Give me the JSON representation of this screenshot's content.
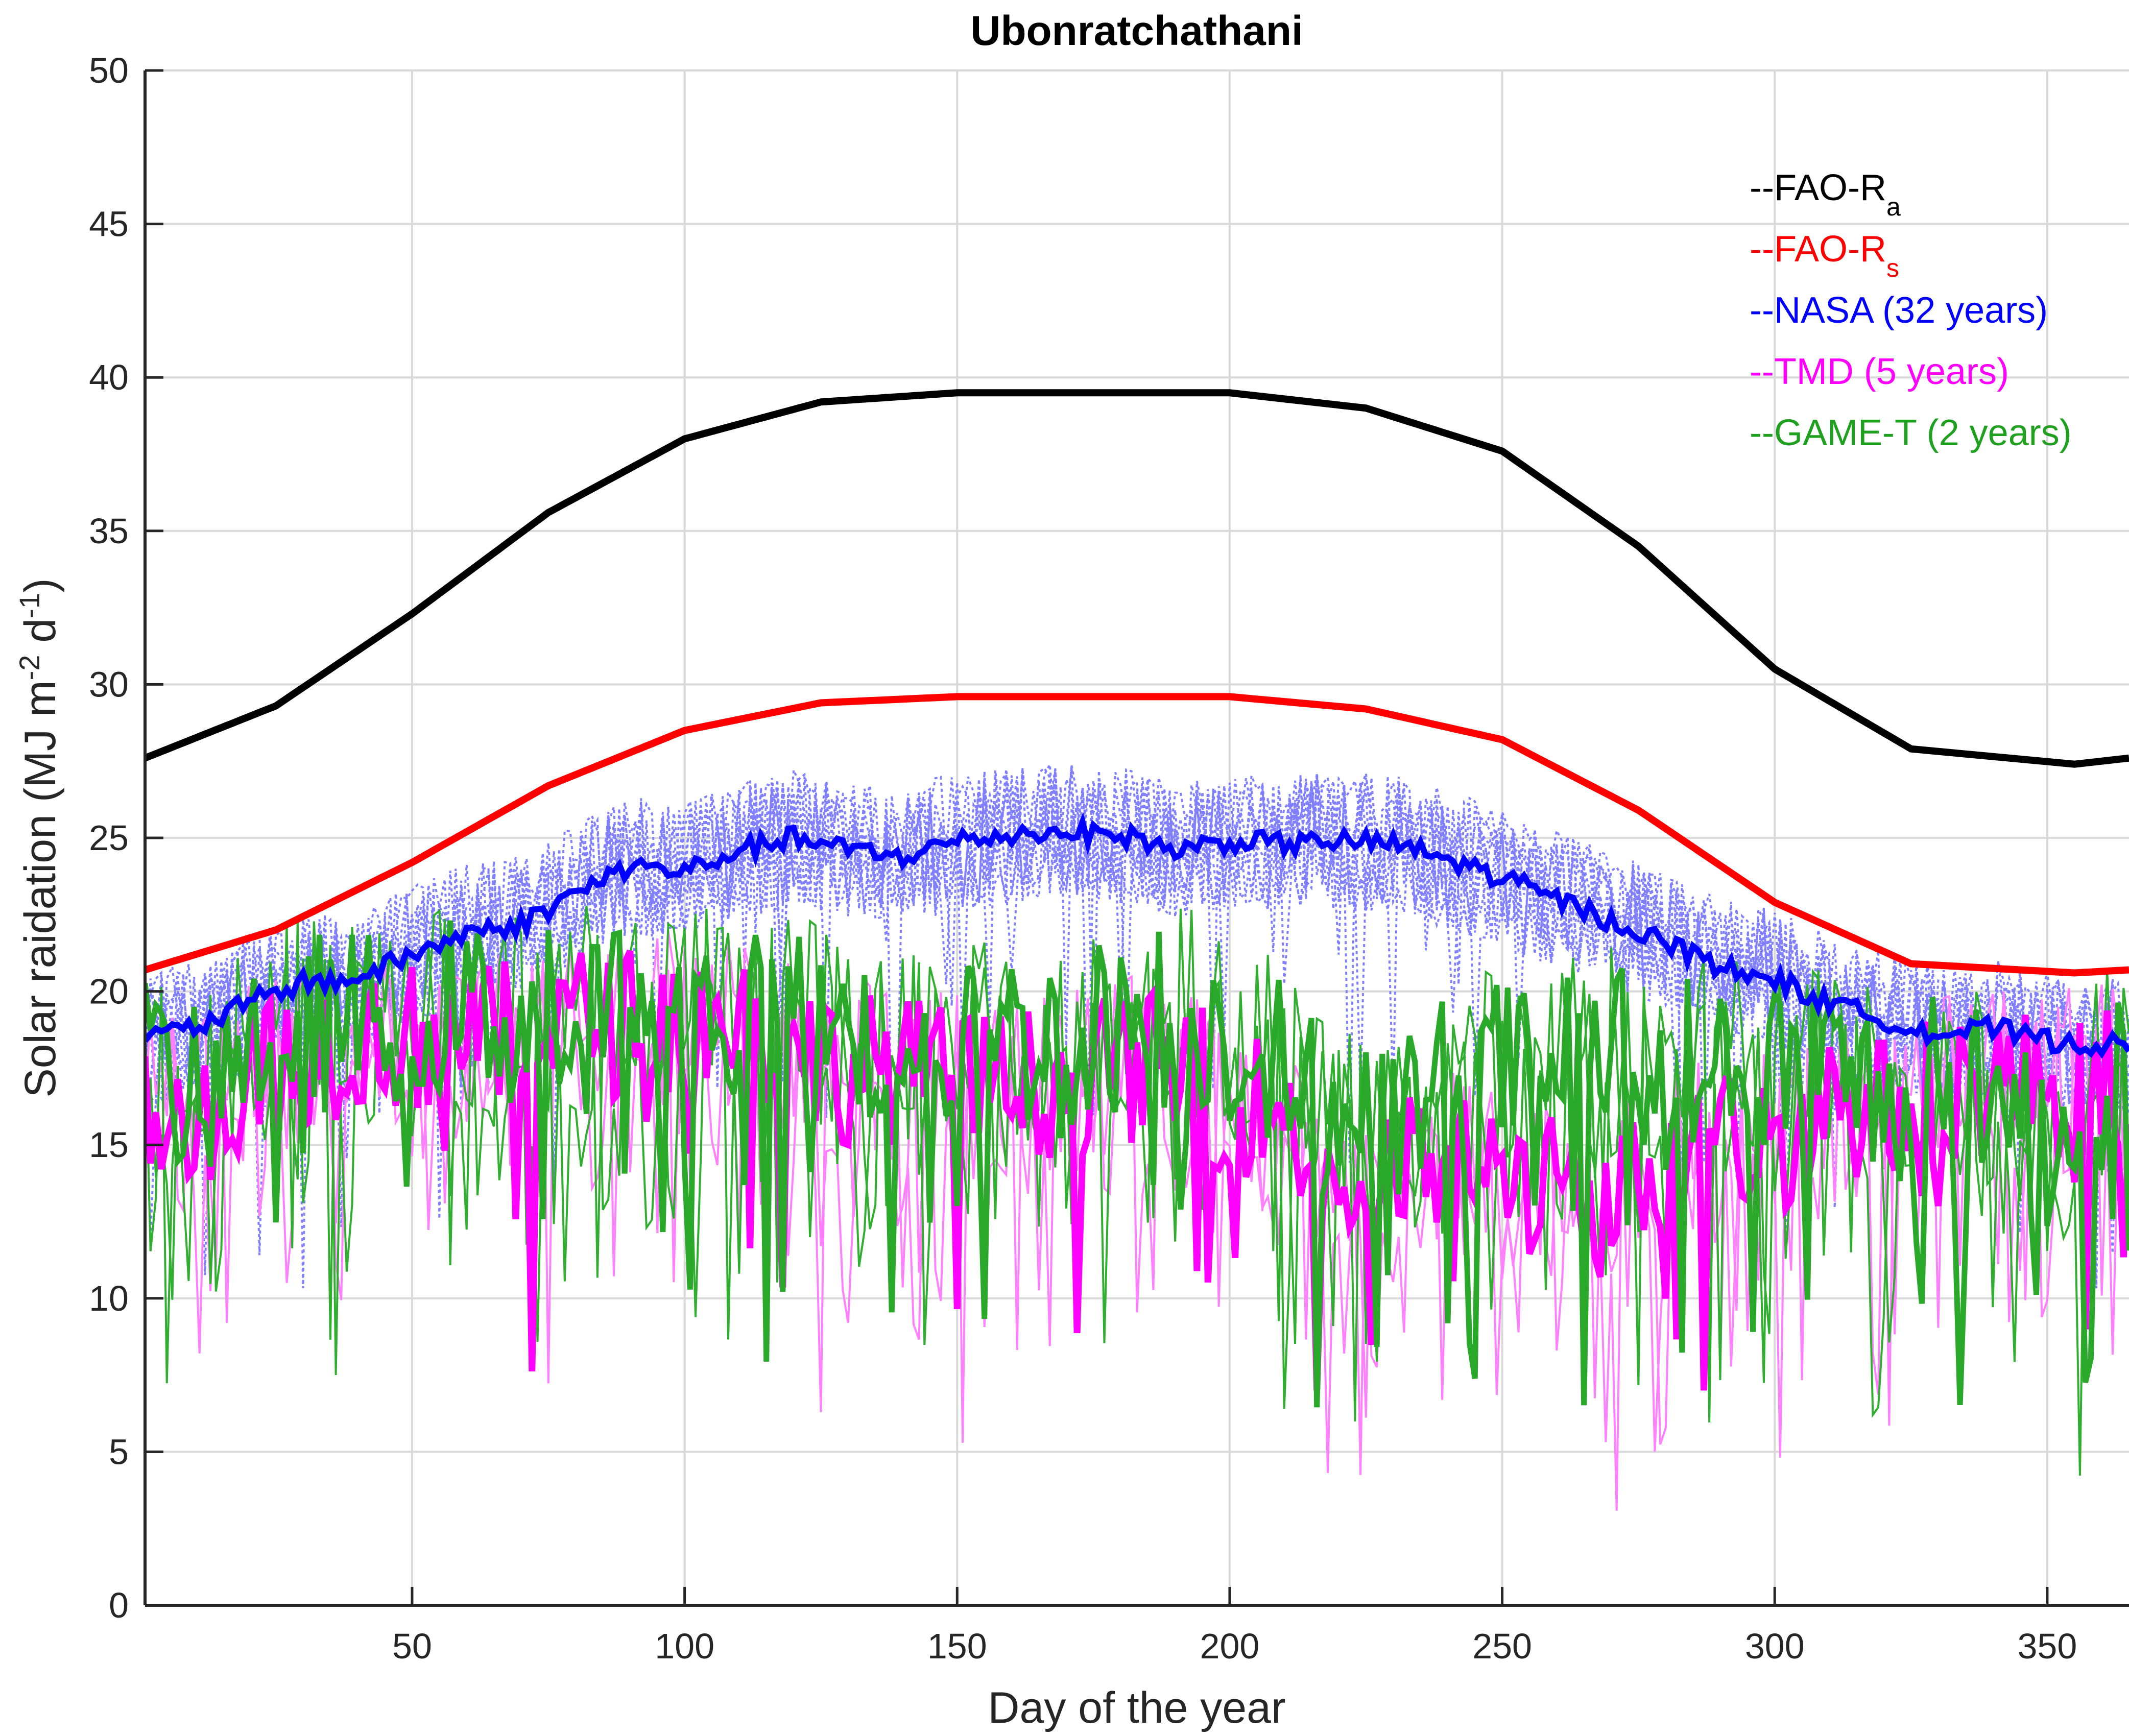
{
  "chart_data": {
    "type": "line",
    "title": "Ubonratchathani",
    "xlabel": "Day of the year",
    "ylabel_parts": [
      "Solar raidation (MJ m",
      "-2",
      " d",
      "-1",
      ")"
    ],
    "xlim": [
      1,
      365
    ],
    "ylim": [
      0,
      50
    ],
    "xticks": [
      50,
      100,
      150,
      200,
      250,
      300,
      350
    ],
    "yticks": [
      0,
      5,
      10,
      15,
      20,
      25,
      30,
      35,
      40,
      45,
      50
    ],
    "grid": true,
    "legend_position": "top-right",
    "series": [
      {
        "name": "--FAO-R",
        "subscript": "a",
        "color": "#000000",
        "style": "thick-solid",
        "x": [
          1,
          25,
          50,
          75,
          100,
          125,
          150,
          172,
          200,
          225,
          250,
          275,
          300,
          325,
          355,
          365
        ],
        "values": [
          27.6,
          29.3,
          32.3,
          35.6,
          38.0,
          39.2,
          39.5,
          39.5,
          39.5,
          39.0,
          37.6,
          34.5,
          30.5,
          27.9,
          27.4,
          27.6
        ]
      },
      {
        "name": "--FAO-R",
        "subscript": "s",
        "color": "#ff0000",
        "style": "thick-solid",
        "x": [
          1,
          25,
          50,
          75,
          100,
          125,
          150,
          172,
          200,
          225,
          250,
          275,
          300,
          325,
          355,
          365
        ],
        "values": [
          20.7,
          22.0,
          24.2,
          26.7,
          28.5,
          29.4,
          29.6,
          29.6,
          29.6,
          29.2,
          28.2,
          25.9,
          22.9,
          20.9,
          20.6,
          20.7
        ]
      },
      {
        "name": "--NASA (32 years)",
        "subscript": "",
        "color": "#0000ff",
        "style": "thick-solid-with-dotted-spread",
        "x": [
          1,
          10,
          20,
          30,
          40,
          50,
          60,
          70,
          80,
          90,
          100,
          110,
          120,
          130,
          140,
          150,
          160,
          170,
          180,
          190,
          200,
          210,
          220,
          230,
          240,
          250,
          260,
          270,
          280,
          290,
          300,
          310,
          320,
          330,
          340,
          350,
          365
        ],
        "values": [
          18.5,
          18.8,
          19.6,
          20.3,
          20.4,
          21.2,
          21.9,
          22.2,
          23.2,
          24.1,
          23.9,
          24.6,
          25.0,
          24.6,
          24.4,
          24.9,
          25.1,
          25.2,
          25.1,
          24.6,
          24.9,
          24.8,
          24.9,
          24.8,
          24.3,
          23.7,
          23.0,
          22.3,
          21.6,
          20.8,
          20.4,
          19.6,
          19.1,
          18.6,
          18.8,
          18.4,
          18.2
        ]
      },
      {
        "name": "--TMD (5 years)",
        "subscript": "",
        "color": "#ff00ff",
        "style": "thick-solid-with-daily-lines",
        "x": [
          1,
          10,
          20,
          30,
          40,
          50,
          60,
          70,
          80,
          90,
          100,
          110,
          120,
          130,
          140,
          150,
          160,
          170,
          180,
          190,
          200,
          210,
          220,
          230,
          240,
          250,
          260,
          270,
          280,
          290,
          300,
          310,
          320,
          330,
          340,
          350,
          365
        ],
        "values": [
          17.0,
          16.0,
          17.5,
          18.0,
          18.5,
          18.5,
          18.5,
          18.5,
          19.0,
          19.0,
          19.0,
          19.0,
          18.0,
          17.5,
          17.5,
          17.0,
          17.0,
          17.0,
          17.5,
          17.5,
          16.5,
          16.0,
          13.5,
          14.0,
          14.5,
          14.0,
          13.5,
          13.0,
          14.5,
          15.0,
          15.0,
          16.5,
          16.0,
          17.0,
          17.0,
          17.0,
          17.5
        ]
      },
      {
        "name": "--GAME-T (2 years)",
        "subscript": "",
        "color": "#1fa01f",
        "style": "thick-solid-with-daily-lines",
        "x": [
          1,
          10,
          20,
          30,
          40,
          50,
          60,
          70,
          80,
          90,
          100,
          110,
          120,
          130,
          140,
          150,
          160,
          170,
          180,
          190,
          200,
          210,
          220,
          230,
          240,
          250,
          260,
          270,
          280,
          290,
          300,
          310,
          320,
          330,
          340,
          350,
          365
        ],
        "values": [
          17.5,
          16.5,
          18.5,
          19.0,
          19.0,
          19.5,
          19.5,
          19.0,
          19.5,
          19.5,
          19.5,
          19.0,
          19.0,
          18.5,
          18.5,
          18.0,
          18.5,
          18.5,
          19.0,
          19.5,
          18.5,
          17.5,
          15.5,
          16.0,
          17.0,
          17.5,
          17.5,
          18.0,
          18.0,
          17.5,
          17.5,
          17.5,
          16.5,
          17.0,
          16.5,
          15.0,
          18.0
        ]
      }
    ]
  }
}
